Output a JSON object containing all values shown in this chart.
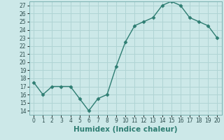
{
  "x": [
    0,
    1,
    2,
    3,
    4,
    5,
    6,
    7,
    8,
    9,
    10,
    11,
    12,
    13,
    14,
    15,
    16,
    17,
    18,
    19,
    20
  ],
  "y": [
    17.5,
    16.0,
    17.0,
    17.0,
    17.0,
    15.5,
    14.0,
    15.5,
    16.0,
    19.5,
    22.5,
    24.5,
    25.0,
    25.5,
    27.0,
    27.5,
    27.0,
    25.5,
    25.0,
    24.5,
    23.0
  ],
  "line_color": "#2e7d72",
  "marker": "D",
  "marker_size": 2.5,
  "xlabel": "Humidex (Indice chaleur)",
  "xlim": [
    -0.5,
    20.5
  ],
  "ylim": [
    13.5,
    27.5
  ],
  "yticks": [
    14,
    15,
    16,
    17,
    18,
    19,
    20,
    21,
    22,
    23,
    24,
    25,
    26,
    27
  ],
  "xticks": [
    0,
    1,
    2,
    3,
    4,
    5,
    6,
    7,
    8,
    9,
    10,
    11,
    12,
    13,
    14,
    15,
    16,
    17,
    18,
    19,
    20
  ],
  "bg_color": "#cce8e8",
  "grid_color": "#b0d4d4",
  "tick_fontsize": 5.5,
  "xlabel_fontsize": 7.5,
  "line_width": 1.0
}
